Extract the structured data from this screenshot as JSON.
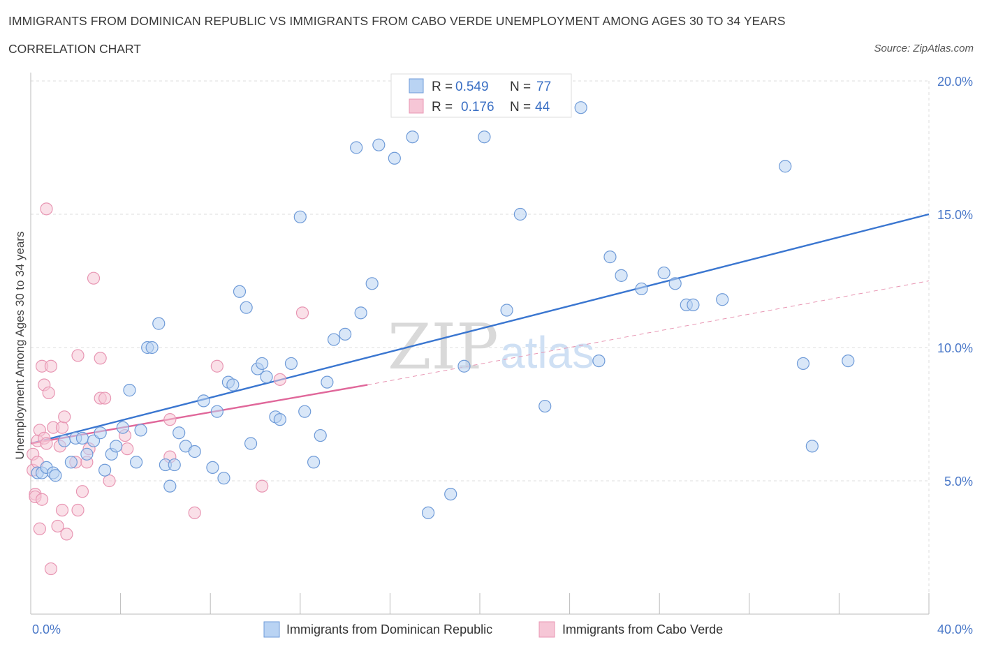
{
  "title": "IMMIGRANTS FROM DOMINICAN REPUBLIC VS IMMIGRANTS FROM CABO VERDE UNEMPLOYMENT AMONG AGES 30 TO 34 YEARS",
  "subtitle": "CORRELATION CHART",
  "source": "Source: ZipAtlas.com",
  "watermark": {
    "zip": "ZIP",
    "atlas": "atlas"
  },
  "colors": {
    "blue": "#4a7fd4",
    "blue_fill": "#b9d3f3",
    "pink": "#e86f9a",
    "pink_fill": "#f6c6d6",
    "grid": "#dddddd",
    "tick_text": "#4a78c8"
  },
  "legend": {
    "items": [
      {
        "r_label": "R =",
        "r_value": "0.549",
        "n_label": "N =",
        "n_value": "77"
      },
      {
        "r_label": "R =",
        "r_value": "0.176",
        "n_label": "N =",
        "n_value": "44"
      }
    ]
  },
  "chart_data": {
    "type": "scatter",
    "xlabel": "",
    "ylabel": "Unemployment Among Ages 30 to 34 years",
    "xlim": [
      0,
      40
    ],
    "ylim": [
      0,
      20
    ],
    "x_tick_labels": [
      "0.0%",
      "40.0%"
    ],
    "y_ticks": [
      5,
      10,
      15,
      20
    ],
    "y_tick_labels": [
      "5.0%",
      "10.0%",
      "15.0%",
      "20.0%"
    ],
    "grid": true,
    "legend_position": "top-center",
    "series": [
      {
        "name": "Immigrants from Dominican Republic",
        "color": "#4a7fd4",
        "r": 0.549,
        "n": 77,
        "trend": {
          "x": [
            0,
            40
          ],
          "y": [
            6.4,
            15.0
          ]
        },
        "points": [
          [
            0.3,
            5.3
          ],
          [
            0.5,
            5.3
          ],
          [
            0.7,
            5.5
          ],
          [
            1.0,
            5.3
          ],
          [
            1.1,
            5.2
          ],
          [
            1.5,
            6.5
          ],
          [
            1.8,
            5.7
          ],
          [
            2.0,
            6.6
          ],
          [
            2.3,
            6.6
          ],
          [
            2.5,
            6.0
          ],
          [
            2.8,
            6.5
          ],
          [
            3.1,
            6.8
          ],
          [
            3.3,
            5.4
          ],
          [
            3.6,
            6.0
          ],
          [
            3.8,
            6.3
          ],
          [
            4.1,
            7.0
          ],
          [
            4.4,
            8.4
          ],
          [
            4.7,
            5.7
          ],
          [
            4.9,
            6.9
          ],
          [
            5.2,
            10.0
          ],
          [
            5.4,
            10.0
          ],
          [
            5.7,
            10.9
          ],
          [
            6.0,
            5.6
          ],
          [
            6.2,
            4.8
          ],
          [
            6.4,
            5.6
          ],
          [
            6.6,
            6.8
          ],
          [
            6.9,
            6.3
          ],
          [
            7.3,
            6.1
          ],
          [
            7.7,
            8.0
          ],
          [
            8.1,
            5.5
          ],
          [
            8.3,
            7.6
          ],
          [
            8.6,
            5.1
          ],
          [
            8.8,
            8.7
          ],
          [
            9.0,
            8.6
          ],
          [
            9.3,
            12.1
          ],
          [
            9.6,
            11.5
          ],
          [
            9.8,
            6.4
          ],
          [
            10.1,
            9.2
          ],
          [
            10.3,
            9.4
          ],
          [
            10.5,
            8.9
          ],
          [
            10.9,
            7.4
          ],
          [
            11.1,
            7.3
          ],
          [
            11.6,
            9.4
          ],
          [
            12.0,
            14.9
          ],
          [
            12.2,
            7.6
          ],
          [
            12.6,
            5.7
          ],
          [
            12.9,
            6.7
          ],
          [
            13.2,
            8.7
          ],
          [
            13.5,
            10.3
          ],
          [
            14.0,
            10.5
          ],
          [
            14.5,
            17.5
          ],
          [
            14.7,
            11.3
          ],
          [
            15.2,
            12.4
          ],
          [
            15.5,
            17.6
          ],
          [
            16.2,
            17.1
          ],
          [
            17.0,
            17.9
          ],
          [
            17.7,
            3.8
          ],
          [
            18.7,
            4.5
          ],
          [
            19.3,
            9.3
          ],
          [
            20.2,
            17.9
          ],
          [
            21.2,
            11.4
          ],
          [
            21.8,
            15.0
          ],
          [
            22.9,
            7.8
          ],
          [
            24.5,
            19.0
          ],
          [
            25.3,
            9.5
          ],
          [
            25.8,
            13.4
          ],
          [
            26.3,
            12.7
          ],
          [
            27.2,
            12.2
          ],
          [
            28.2,
            12.8
          ],
          [
            28.7,
            12.4
          ],
          [
            29.2,
            11.6
          ],
          [
            29.5,
            11.6
          ],
          [
            30.8,
            11.8
          ],
          [
            33.6,
            16.8
          ],
          [
            34.4,
            9.4
          ],
          [
            34.8,
            6.3
          ],
          [
            36.4,
            9.5
          ]
        ]
      },
      {
        "name": "Immigrants from Cabo Verde",
        "color": "#e86f9a",
        "r": 0.176,
        "n": 44,
        "trend": {
          "x": [
            0,
            15
          ],
          "y": [
            6.4,
            8.6
          ]
        },
        "trend_dashed": {
          "x": [
            15,
            40
          ],
          "y": [
            8.6,
            12.5
          ]
        },
        "points": [
          [
            0.1,
            6.0
          ],
          [
            0.1,
            5.4
          ],
          [
            0.2,
            4.5
          ],
          [
            0.2,
            4.4
          ],
          [
            0.3,
            6.5
          ],
          [
            0.3,
            5.7
          ],
          [
            0.4,
            3.2
          ],
          [
            0.4,
            6.9
          ],
          [
            0.5,
            4.3
          ],
          [
            0.5,
            9.3
          ],
          [
            0.6,
            6.6
          ],
          [
            0.6,
            8.6
          ],
          [
            0.7,
            6.4
          ],
          [
            0.7,
            15.2
          ],
          [
            0.8,
            8.3
          ],
          [
            0.9,
            1.7
          ],
          [
            0.9,
            9.3
          ],
          [
            1.0,
            7.0
          ],
          [
            1.2,
            3.3
          ],
          [
            1.3,
            6.3
          ],
          [
            1.4,
            7.0
          ],
          [
            1.4,
            3.9
          ],
          [
            1.5,
            7.4
          ],
          [
            1.6,
            3.0
          ],
          [
            2.0,
            5.7
          ],
          [
            2.1,
            3.9
          ],
          [
            2.1,
            9.7
          ],
          [
            2.3,
            4.6
          ],
          [
            2.5,
            5.7
          ],
          [
            2.6,
            6.2
          ],
          [
            2.8,
            12.6
          ],
          [
            3.1,
            8.1
          ],
          [
            3.1,
            9.6
          ],
          [
            3.3,
            8.1
          ],
          [
            3.5,
            5.0
          ],
          [
            4.2,
            6.7
          ],
          [
            4.3,
            6.2
          ],
          [
            6.2,
            5.9
          ],
          [
            6.2,
            7.3
          ],
          [
            7.3,
            3.8
          ],
          [
            8.3,
            9.3
          ],
          [
            10.3,
            4.8
          ],
          [
            11.1,
            8.8
          ],
          [
            12.1,
            11.3
          ]
        ]
      }
    ]
  }
}
